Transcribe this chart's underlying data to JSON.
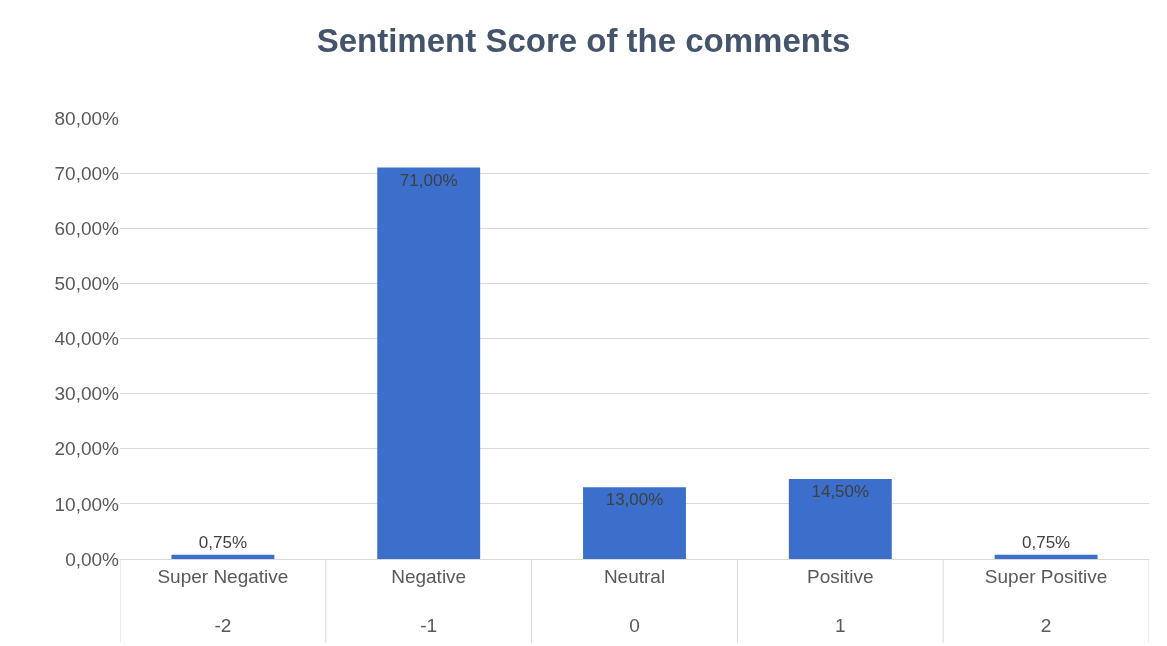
{
  "chart_data": {
    "type": "bar",
    "title": "Sentiment Score of the comments",
    "categories": [
      "Super Negative\n-2",
      "Negative\n-1",
      "Neutral\n0",
      "Positive\n1",
      "Super Positive\n2"
    ],
    "values": [
      0.75,
      71,
      13,
      14.5,
      0.75
    ],
    "value_labels": [
      "0,75%",
      "71,00%",
      "13,00%",
      "14,50%",
      "0,75%"
    ],
    "color": "#3b6fcb",
    "ylim": [
      0,
      80
    ],
    "yticks": [
      {
        "value": 0,
        "label": "0,00%"
      },
      {
        "value": 10,
        "label": "10,00%"
      },
      {
        "value": 20,
        "label": "20,00%"
      },
      {
        "value": 30,
        "label": "30,00%"
      },
      {
        "value": 40,
        "label": "40,00%"
      },
      {
        "value": 50,
        "label": "50,00%"
      },
      {
        "value": 60,
        "label": "60,00%"
      },
      {
        "value": 70,
        "label": "70,00%"
      },
      {
        "value": 80,
        "label": "80,00%"
      }
    ],
    "grid": "y",
    "legend": false
  }
}
